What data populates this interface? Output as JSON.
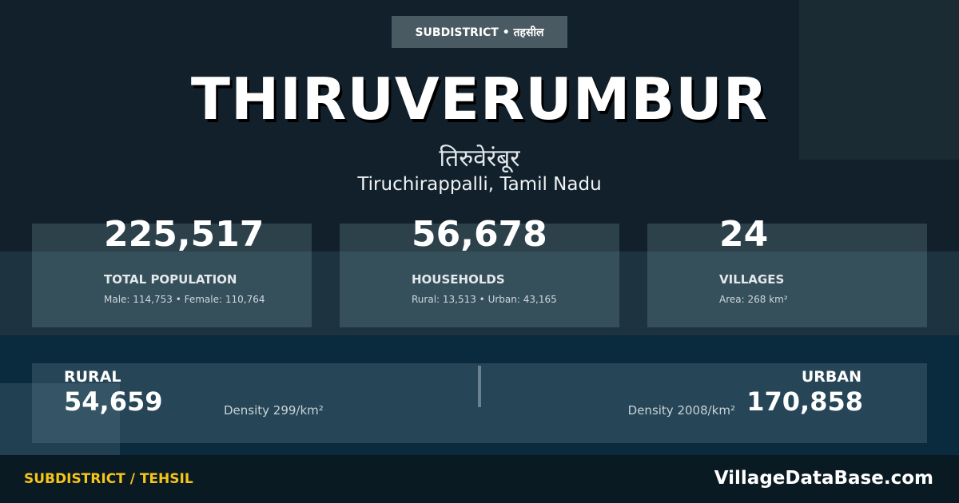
{
  "badge": "SUBDISTRICT • तहसील",
  "title": "THIRUVERUMBUR",
  "title_hindi": "तिरुवेरंबूर",
  "location": "Tiruchirappalli, Tamil Nadu",
  "stats": [
    {
      "value": "225,517",
      "label": "TOTAL POPULATION",
      "sub": "Male: 114,753 • Female: 110,764"
    },
    {
      "value": "56,678",
      "label": "HOUSEHOLDS",
      "sub": "Rural: 13,513 • Urban: 43,165"
    },
    {
      "value": "24",
      "label": "VILLAGES",
      "sub": "Area: 268 km²"
    }
  ],
  "rural": {
    "label": "RURAL",
    "value": "54,659",
    "density": "Density 299/km²"
  },
  "urban": {
    "label": "URBAN",
    "value": "170,858",
    "density": "Density 2008/km²"
  },
  "footer": {
    "left": "SUBDISTRICT / TEHSIL",
    "brand": "VillageDataBase.com"
  },
  "colors": {
    "accent": "#f5c518",
    "background": "#11202a"
  }
}
